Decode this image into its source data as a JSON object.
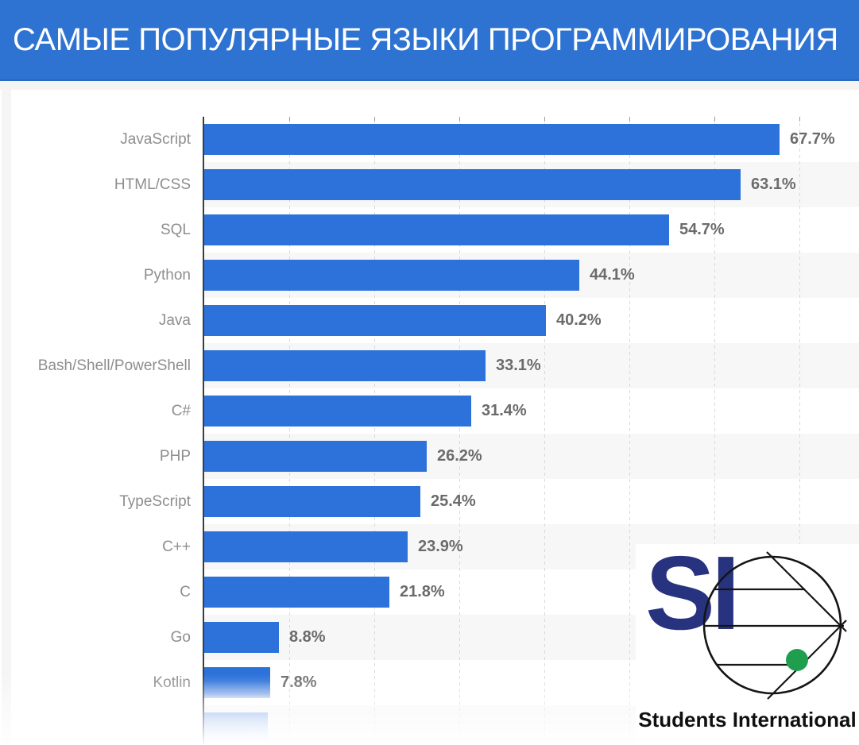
{
  "header": {
    "title": "САМЫЕ ПОПУЛЯРНЫЕ ЯЗЫКИ ПРОГРАММИРОВАНИЯ",
    "background_color": "#2f73d2",
    "text_color": "#ffffff"
  },
  "chart_data": {
    "type": "bar",
    "orientation": "horizontal",
    "title": "САМЫЕ ПОПУЛЯРНЫЕ ЯЗЫКИ ПРОГРАММИРОВАНИЯ",
    "unit": "%",
    "categories": [
      "JavaScript",
      "HTML/CSS",
      "SQL",
      "Python",
      "Java",
      "Bash/Shell/PowerShell",
      "C#",
      "PHP",
      "TypeScript",
      "C++",
      "C",
      "Go",
      "Kotlin"
    ],
    "values": [
      67.7,
      63.1,
      54.7,
      44.1,
      40.2,
      33.1,
      31.4,
      26.2,
      25.4,
      23.9,
      21.8,
      8.8,
      7.8
    ],
    "value_labels": [
      "67.7%",
      "63.1%",
      "54.7%",
      "44.1%",
      "40.2%",
      "33.1%",
      "31.4%",
      "26.2%",
      "25.4%",
      "23.9%",
      "21.8%",
      "8.8%",
      "7.8%"
    ],
    "xlim": [
      0,
      77
    ],
    "gridline_interval_percent": 10,
    "grid": "vertical-dashed",
    "legend": "none",
    "bar_color": "#2c72da",
    "row_band_alt_color": "#f7f7f8",
    "axis_color": "#3d3d3d",
    "category_label_color": "#8e8e8e",
    "value_label_color": "#6b6b6b",
    "faded_partial_row": {
      "visible": true,
      "label_legible": false,
      "approx_value_percent": 7.5
    }
  },
  "logo": {
    "monogram": "SI",
    "wordmark": "Students International",
    "monogram_color": "#28337f",
    "dot_color": "#1f9e4e",
    "emblem": "circle-with-lines-and-green-dot"
  }
}
